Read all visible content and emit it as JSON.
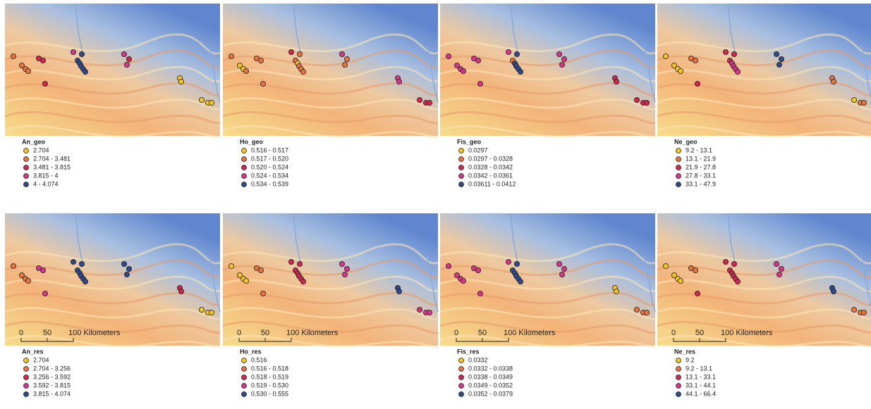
{
  "panels": [
    {
      "title": "An_geo",
      "classes": [
        "2.704",
        "2.704 - 3.481",
        "3.481 - 3.815",
        "3.815 - 4",
        "4 - 4.074"
      ]
    },
    {
      "title": "Ho_geo",
      "classes": [
        "0.516 - 0.517",
        "0.517 - 0.520",
        "0.520 - 0.524",
        "0.524 - 0.534",
        "0.534 - 0.539"
      ]
    },
    {
      "title": "Fis_geo",
      "classes": [
        "0.0297",
        "0.0297 - 0.0328",
        "0.0328 - 0.0342",
        "0.0342 - 0.0361",
        "0.03611 - 0.0412"
      ]
    },
    {
      "title": "Ne_geo",
      "classes": [
        "9.2 - 13.1",
        "13.1 - 21.9",
        "21.9 - 27.8",
        "27.8 - 33.1",
        "33.1 - 47.9"
      ]
    },
    {
      "title": "An_res",
      "classes": [
        "2.704",
        "2.704 - 3.256",
        "3.256 - 3.592",
        "3.592 - 3.815",
        "3.815 - 4.074"
      ]
    },
    {
      "title": "Ho_res",
      "classes": [
        "0.516",
        "0.516 - 0.518",
        "0.518 - 0.519",
        "0.519 - 0.530",
        "0.530 - 0.555"
      ]
    },
    {
      "title": "Fis_res",
      "classes": [
        "0.0332",
        "0.0332 - 0.0338",
        "0.0338 - 0.0349",
        "0.0349 - 0.0352",
        "0.0352 - 0.0379"
      ]
    },
    {
      "title": "Ne_res",
      "classes": [
        "9.2",
        "9.2 - 13.1",
        "13.1 - 33.1",
        "33.1 - 44.1",
        "44.1 - 66.4"
      ]
    }
  ],
  "scale_bar": {
    "labels": [
      "0",
      "50",
      "100 Kilometers"
    ]
  },
  "colors": [
    "#f5c518",
    "#e8743b",
    "#d6254d",
    "#d8348a",
    "#2e4a8c"
  ]
}
